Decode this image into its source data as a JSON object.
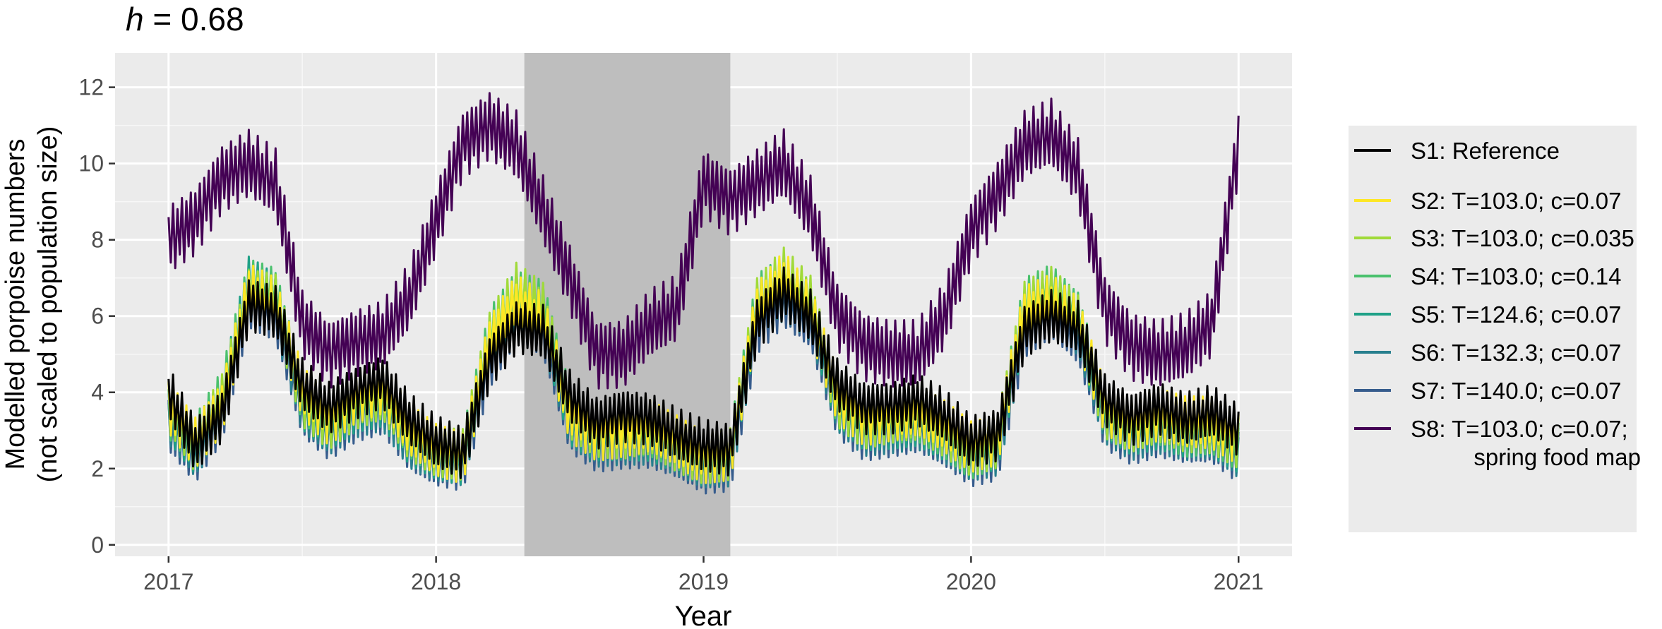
{
  "title": {
    "italic": "h",
    "rest": " = 0.68"
  },
  "chart_data": {
    "type": "line",
    "title": "h = 0.68",
    "xlabel": "Year",
    "ylabel_line1": "Modelled porpoise numbers",
    "ylabel_line2": "(not scaled to population size)",
    "xlim": [
      2016.8,
      2021.2
    ],
    "ylim": [
      -0.3,
      12.9
    ],
    "x_ticks": [
      2017,
      2018,
      2019,
      2020,
      2021
    ],
    "x_tick_labels": [
      "2017",
      "2018",
      "2019",
      "2020",
      "2021"
    ],
    "y_ticks": [
      0,
      2,
      4,
      6,
      8,
      10,
      12
    ],
    "y_tick_labels": [
      "0",
      "2",
      "4",
      "6",
      "8",
      "10",
      "12"
    ],
    "grid": true,
    "shaded_region": {
      "x_start": 2018.33,
      "x_end": 2019.1,
      "color": "#bebebe"
    },
    "legend_position": "right",
    "x": [
      2017.0,
      2017.1,
      2017.2,
      2017.3,
      2017.4,
      2017.5,
      2017.6,
      2017.7,
      2017.8,
      2017.9,
      2018.0,
      2018.1,
      2018.2,
      2018.3,
      2018.4,
      2018.5,
      2018.6,
      2018.7,
      2018.8,
      2018.9,
      2019.0,
      2019.1,
      2019.2,
      2019.3,
      2019.4,
      2019.5,
      2019.6,
      2019.7,
      2019.8,
      2019.9,
      2020.0,
      2020.1,
      2020.2,
      2020.3,
      2020.4,
      2020.5,
      2020.6,
      2020.7,
      2020.8,
      2020.9,
      2021.0
    ],
    "series": [
      {
        "name": "S1: Reference",
        "color": "#000000",
        "values": [
          4.0,
          2.6,
          3.4,
          6.3,
          6.1,
          4.2,
          3.6,
          4.0,
          4.3,
          3.3,
          2.7,
          2.4,
          4.8,
          5.7,
          5.6,
          3.9,
          3.2,
          3.4,
          3.3,
          2.9,
          2.6,
          2.5,
          5.8,
          6.6,
          6.0,
          4.2,
          3.6,
          3.6,
          3.8,
          3.4,
          2.7,
          2.9,
          5.6,
          6.0,
          5.7,
          3.8,
          3.3,
          3.6,
          3.3,
          3.5,
          3.0
        ]
      },
      {
        "name": "S2: T=103.0; c=0.07",
        "color": "#fde725",
        "values": [
          3.6,
          2.7,
          3.6,
          6.7,
          6.3,
          4.0,
          3.3,
          3.9,
          4.1,
          3.0,
          2.5,
          2.3,
          5.3,
          6.4,
          5.9,
          3.4,
          2.9,
          3.0,
          3.1,
          2.7,
          2.3,
          2.4,
          6.2,
          7.0,
          6.1,
          3.9,
          3.3,
          3.4,
          3.5,
          3.1,
          2.6,
          2.8,
          6.1,
          6.4,
          5.8,
          3.6,
          3.2,
          3.4,
          3.2,
          3.2,
          2.8
        ]
      },
      {
        "name": "S3: T=103.0; c=0.035",
        "color": "#a0da39",
        "values": [
          3.7,
          2.6,
          3.8,
          6.5,
          6.4,
          3.8,
          3.2,
          3.7,
          3.9,
          2.9,
          2.5,
          2.4,
          5.4,
          6.7,
          6.2,
          3.5,
          3.0,
          2.9,
          3.0,
          2.6,
          2.3,
          2.4,
          6.3,
          7.1,
          6.4,
          3.8,
          3.2,
          3.3,
          3.4,
          3.0,
          2.5,
          2.7,
          6.2,
          6.6,
          5.9,
          3.5,
          3.1,
          3.3,
          3.1,
          3.1,
          2.7
        ]
      },
      {
        "name": "S4: T=103.0; c=0.14",
        "color": "#4ac16d",
        "values": [
          3.5,
          2.7,
          3.9,
          6.8,
          6.6,
          3.9,
          3.3,
          3.8,
          4.0,
          3.0,
          2.5,
          2.3,
          5.5,
          6.5,
          6.3,
          3.6,
          3.0,
          3.0,
          3.0,
          2.7,
          2.3,
          2.4,
          6.4,
          6.9,
          6.3,
          3.8,
          3.3,
          3.3,
          3.4,
          3.0,
          2.4,
          2.7,
          6.3,
          6.7,
          6.0,
          3.5,
          3.1,
          3.3,
          3.0,
          3.1,
          2.6
        ]
      },
      {
        "name": "S5: T=124.6; c=0.07",
        "color": "#1fa187",
        "values": [
          3.4,
          2.5,
          3.7,
          6.9,
          6.5,
          3.7,
          3.1,
          3.6,
          3.8,
          2.8,
          2.4,
          2.2,
          5.2,
          6.3,
          6.0,
          3.3,
          2.8,
          2.9,
          2.9,
          2.6,
          2.2,
          2.3,
          6.1,
          6.8,
          6.2,
          3.7,
          3.1,
          3.2,
          3.3,
          2.9,
          2.4,
          2.6,
          6.0,
          6.5,
          5.8,
          3.4,
          3.0,
          3.2,
          3.0,
          3.0,
          2.5
        ]
      },
      {
        "name": "S6: T=132.3; c=0.07",
        "color": "#277f8e",
        "values": [
          3.3,
          2.4,
          3.5,
          6.6,
          6.2,
          3.6,
          3.0,
          3.5,
          3.7,
          2.7,
          2.3,
          2.2,
          5.0,
          6.2,
          5.8,
          3.2,
          2.7,
          2.8,
          2.8,
          2.5,
          2.1,
          2.2,
          5.9,
          6.6,
          6.0,
          3.6,
          3.0,
          3.1,
          3.2,
          2.8,
          2.3,
          2.5,
          5.8,
          6.3,
          5.6,
          3.3,
          2.9,
          3.1,
          2.9,
          2.9,
          2.4
        ]
      },
      {
        "name": "S7: T=140.0; c=0.07",
        "color": "#365c8d",
        "values": [
          3.1,
          2.3,
          3.4,
          6.4,
          6.0,
          3.5,
          2.9,
          3.4,
          3.6,
          2.6,
          2.2,
          2.1,
          4.8,
          6.0,
          5.6,
          3.1,
          2.6,
          2.7,
          2.7,
          2.4,
          2.0,
          2.1,
          5.7,
          6.4,
          5.8,
          3.5,
          2.9,
          3.0,
          3.1,
          2.7,
          2.2,
          2.4,
          5.6,
          6.1,
          5.4,
          3.2,
          2.8,
          3.0,
          2.8,
          2.8,
          2.3
        ]
      },
      {
        "name": "S8: T=103.0; c=0.07;\nspring food map",
        "color": "#440154",
        "values": [
          8.0,
          8.5,
          9.6,
          10.0,
          9.5,
          5.8,
          5.0,
          5.3,
          5.5,
          6.5,
          8.5,
          10.5,
          11.0,
          10.5,
          8.8,
          7.0,
          5.0,
          5.0,
          5.8,
          6.2,
          9.5,
          9.0,
          9.5,
          10.0,
          8.8,
          6.0,
          5.2,
          5.0,
          5.0,
          6.0,
          8.2,
          9.2,
          10.5,
          10.8,
          9.8,
          6.2,
          5.2,
          5.0,
          5.2,
          5.8,
          10.5
        ]
      }
    ]
  }
}
